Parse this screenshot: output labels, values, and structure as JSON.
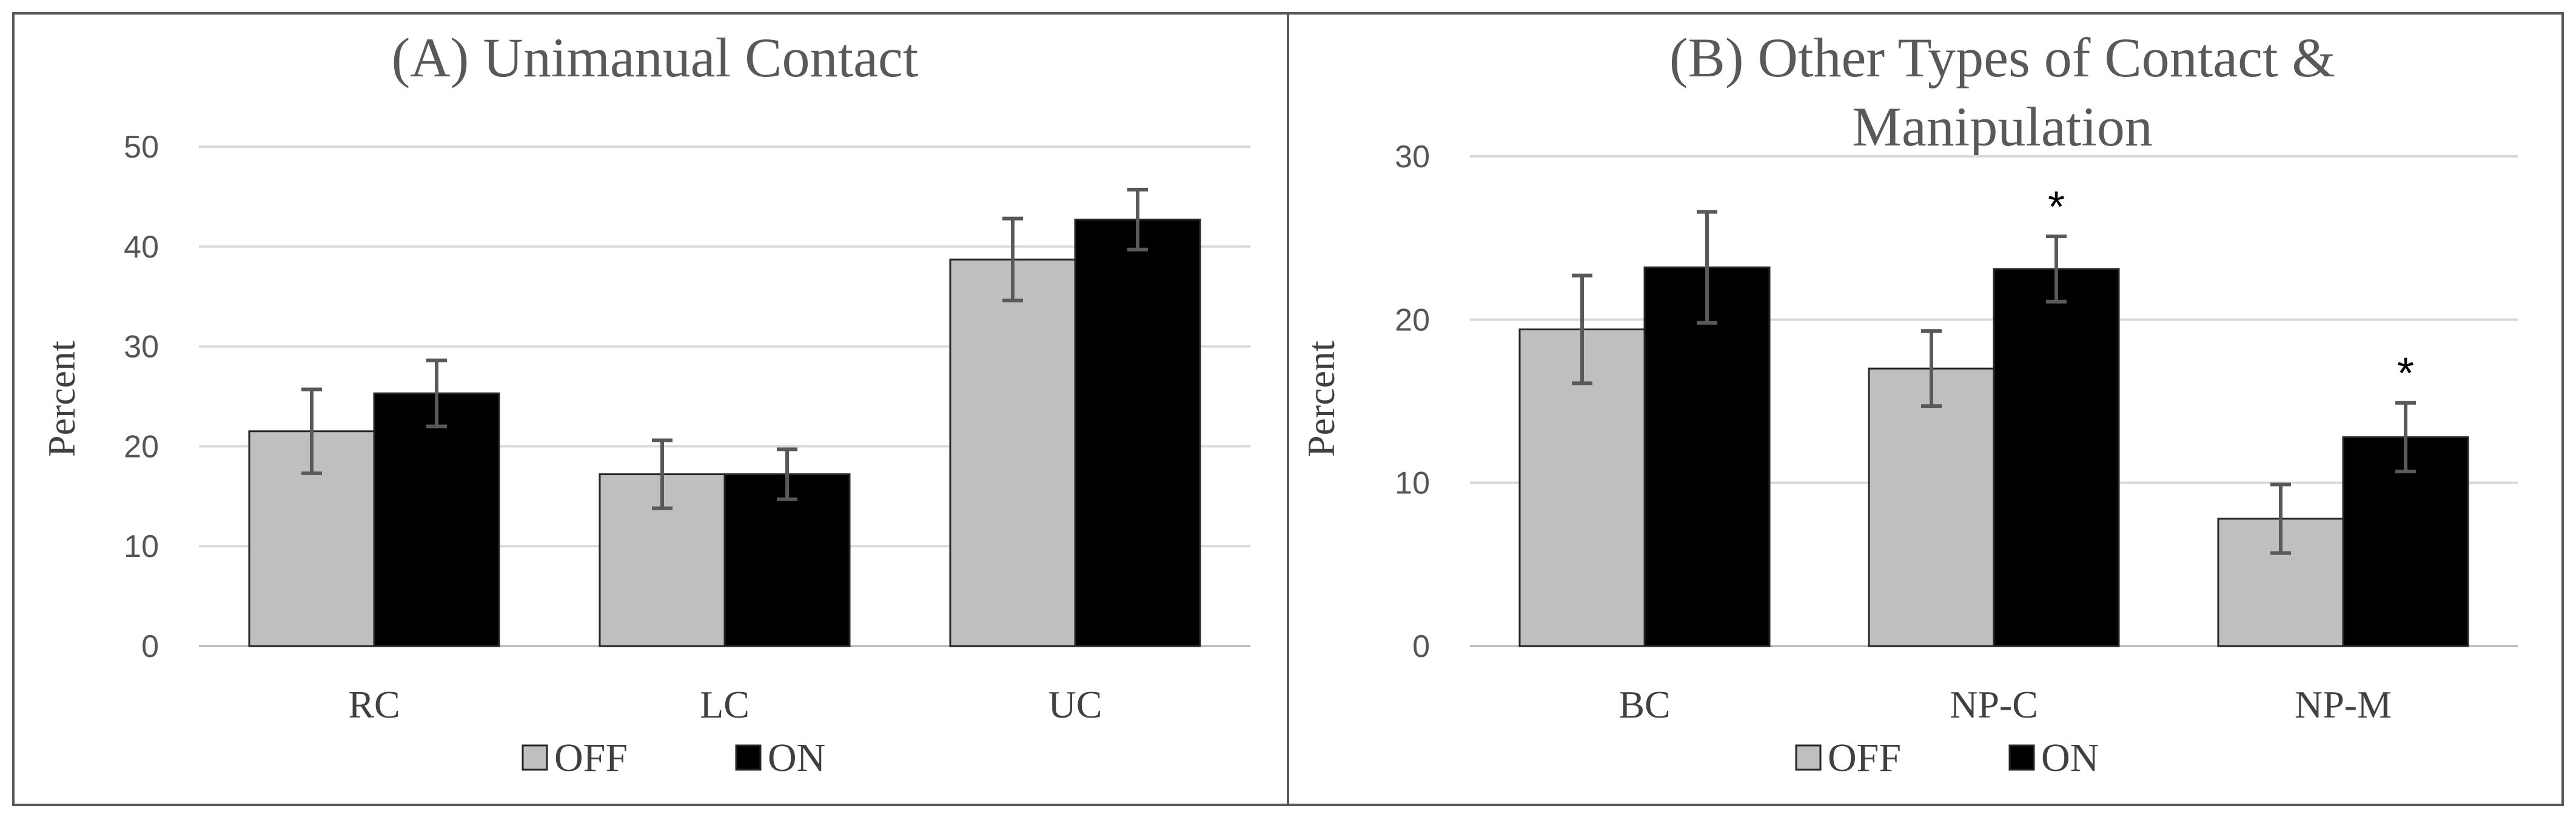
{
  "colors": {
    "off": "#bfbfbf",
    "on": "#000000",
    "grid": "#d9d9d9",
    "error_bar": "#595959",
    "border": "#595959"
  },
  "chart_data": [
    {
      "type": "bar",
      "title": "(A) Unimanual Contact",
      "xlabel": "",
      "ylabel": "Percent",
      "ylim": [
        0,
        50
      ],
      "yticks": [
        0,
        10,
        20,
        30,
        40,
        50
      ],
      "grid": true,
      "legend": "bottom-center",
      "categories": [
        "RC",
        "LC",
        "UC"
      ],
      "series": [
        {
          "name": "OFF",
          "values": [
            21.5,
            17.2,
            38.7
          ],
          "errors": [
            4.2,
            3.4,
            4.1
          ]
        },
        {
          "name": "ON",
          "values": [
            25.3,
            17.2,
            42.7
          ],
          "errors": [
            3.3,
            2.5,
            3.0
          ]
        }
      ],
      "significance": [
        "",
        "",
        ""
      ]
    },
    {
      "type": "bar",
      "title": "(B) Other Types of Contact & Manipulation",
      "title_lines": [
        "(B) Other Types of Contact &",
        "Manipulation"
      ],
      "xlabel": "",
      "ylabel": "Percent",
      "ylim": [
        0,
        30
      ],
      "yticks": [
        0,
        10,
        20,
        30
      ],
      "grid": true,
      "legend": "bottom-center",
      "categories": [
        "BC",
        "NP-C",
        "NP-M"
      ],
      "series": [
        {
          "name": "OFF",
          "values": [
            19.4,
            17.0,
            7.8
          ],
          "errors": [
            3.3,
            2.3,
            2.1
          ]
        },
        {
          "name": "ON",
          "values": [
            23.2,
            23.1,
            12.8
          ],
          "errors": [
            3.4,
            2.0,
            2.1
          ]
        }
      ],
      "significance": [
        "",
        "*",
        "*"
      ]
    }
  ]
}
